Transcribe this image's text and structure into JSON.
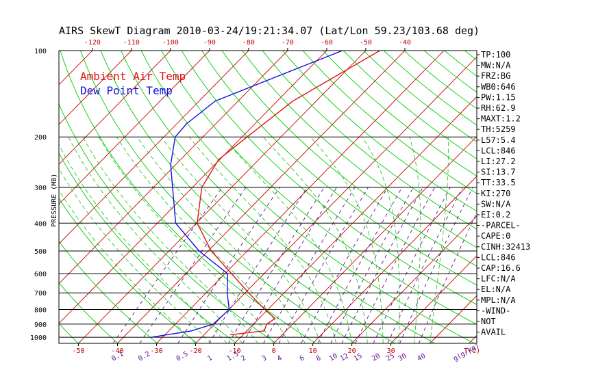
{
  "chart_data": {
    "type": "line",
    "title": "AIRS SkewT Diagram 2010-03-24/19:21:34.07 (Lat/Lon 59.23/103.68 deg)",
    "ylabel": "PRESSURE (MB)",
    "xlabel_temp": "T(C)",
    "xlabel_mix": "g(g/kg)",
    "pressure_ticks": [
      100,
      200,
      300,
      400,
      500,
      600,
      700,
      800,
      900,
      1000
    ],
    "pressure_range": [
      100,
      1050
    ],
    "temp_range_bottom": [
      -55,
      52
    ],
    "bottom_temp_ticks": [
      -50,
      -40,
      -30,
      -20,
      -10,
      0,
      10,
      20,
      30
    ],
    "top_temp_ticks": [
      -120,
      -110,
      -100,
      -90,
      -80,
      -70,
      -60,
      -50,
      -40
    ],
    "mixing_ratio_labels": [
      "0.1",
      "0.2",
      "0.5",
      "1",
      "1.5",
      "2",
      "3",
      "4",
      "6",
      "8",
      "10",
      "12",
      "15",
      "20",
      "25",
      "30",
      "40"
    ],
    "legend": [
      {
        "name": "Ambient Air Temp",
        "color": "#e01010"
      },
      {
        "name": "Dew Point Temp",
        "color": "#1010e0"
      }
    ],
    "series": [
      {
        "name": "Ambient Air Temp",
        "color": "#e01010",
        "points": [
          [
            100,
            -46.4
          ],
          [
            150,
            -56
          ],
          [
            200,
            -58.7
          ],
          [
            240,
            -60.3
          ],
          [
            300,
            -57.6
          ],
          [
            400,
            -49.8
          ],
          [
            500,
            -39.2
          ],
          [
            600,
            -28.3
          ],
          [
            700,
            -19.1
          ],
          [
            800,
            -10.8
          ],
          [
            860,
            -5.9
          ],
          [
            900,
            -6.6
          ],
          [
            950,
            -5.6
          ],
          [
            980,
            -13.2
          ]
        ]
      },
      {
        "name": "Dew Point Temp",
        "color": "#1010e0",
        "points": [
          [
            100,
            -56
          ],
          [
            150,
            -75.9
          ],
          [
            180,
            -77.5
          ],
          [
            200,
            -77.1
          ],
          [
            250,
            -71.3
          ],
          [
            300,
            -65.1
          ],
          [
            400,
            -55.3
          ],
          [
            500,
            -42.3
          ],
          [
            600,
            -29.3
          ],
          [
            700,
            -24.6
          ],
          [
            800,
            -19.9
          ],
          [
            900,
            -20.3
          ],
          [
            950,
            -24.2
          ],
          [
            1000,
            -32.8
          ]
        ]
      }
    ],
    "indices": [
      "TP:100",
      "MW:N/A",
      "FRZ:BG",
      "WB0:646",
      "PW:1.15",
      "RH:62.9",
      "MAXT:1.2",
      "TH:5259",
      "L57:5.4",
      "LCL:846",
      "LI:27.2",
      "SI:13.7",
      "TT:33.5",
      "KI:270",
      "SW:N/A",
      "EI:0.2",
      "-PARCEL-",
      "CAPE:0",
      "CINH:32413",
      "LCL:846",
      "CAP:16.6",
      "LFC:N/A",
      "EL:N/A",
      "MPL:N/A",
      "-WIND-",
      "NOT",
      "AVAIL"
    ],
    "colors": {
      "isotherm": "#cc0000",
      "dry_adiabat": "#00cc00",
      "moist_adiabat": "#22cc22",
      "mixing_ratio": "#5a1090",
      "frame": "#000000",
      "bottom_tick_label": "#c00000",
      "top_tick_label": "#c00000",
      "mix_label": "#5a1090"
    }
  }
}
